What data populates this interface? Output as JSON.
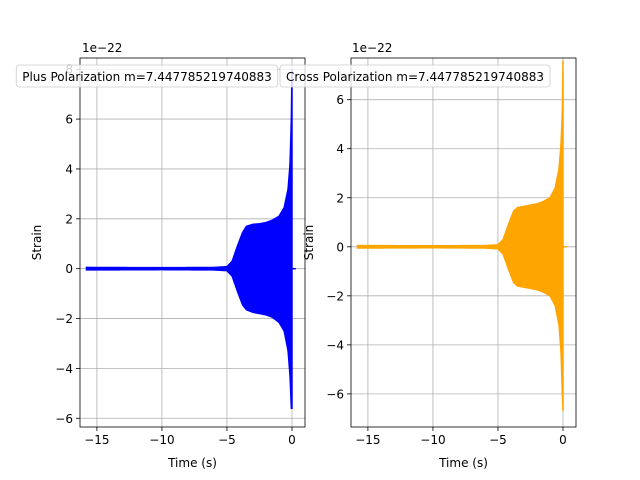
{
  "chart_data": [
    {
      "type": "line",
      "title": "Plus Polarization m=7.447785219740883",
      "xlabel": "Time (s)",
      "ylabel": "Strain",
      "offset_text": "1e−22",
      "color": "#0000ff",
      "grid": true,
      "legend": "none",
      "xlim": [
        -16.3,
        1.0
      ],
      "ylim": [
        -6.35,
        8.45
      ],
      "xticks": [
        -15,
        -10,
        -5,
        0
      ],
      "xtick_labels": [
        "−15",
        "−10",
        "−5",
        "0"
      ],
      "yticks": [
        -6,
        -4,
        -2,
        0,
        2,
        4,
        6,
        8
      ],
      "ytick_labels": [
        "−6",
        "−4",
        "−2",
        "0",
        "2",
        "4",
        "6",
        "8"
      ],
      "envelope": {
        "t": [
          -15.8,
          -10.0,
          -6.0,
          -5.0,
          -4.6,
          -4.2,
          -3.8,
          -3.5,
          -3.0,
          -2.5,
          -2.0,
          -1.5,
          -1.0,
          -0.6,
          -0.3,
          -0.15,
          -0.05,
          0.0
        ],
        "upper": [
          0.05,
          0.04,
          0.05,
          0.08,
          0.3,
          0.9,
          1.45,
          1.7,
          1.78,
          1.8,
          1.85,
          1.95,
          2.1,
          2.45,
          3.2,
          4.2,
          6.0,
          8.0
        ],
        "lower": [
          -0.05,
          -0.04,
          -0.05,
          -0.08,
          -0.3,
          -0.9,
          -1.45,
          -1.65,
          -1.75,
          -1.8,
          -1.85,
          -1.95,
          -2.15,
          -2.5,
          -3.3,
          -4.3,
          -5.6,
          -5.6
        ]
      },
      "tail": {
        "t": [
          0.0,
          0.3
        ],
        "value": 0.0
      }
    },
    {
      "type": "line",
      "title": "Cross Polarization m=7.447785219740883",
      "xlabel": "Time (s)",
      "ylabel": "Strain",
      "offset_text": "1e−22",
      "color": "#ffa500",
      "grid": true,
      "legend": "none",
      "xlim": [
        -16.3,
        1.0
      ],
      "ylim": [
        -7.35,
        7.7
      ],
      "xticks": [
        -15,
        -10,
        -5,
        0
      ],
      "xtick_labels": [
        "−15",
        "−10",
        "−5",
        "0"
      ],
      "yticks": [
        -6,
        -4,
        -2,
        0,
        2,
        4,
        6
      ],
      "ytick_labels": [
        "−6",
        "−4",
        "−2",
        "0",
        "2",
        "4",
        "6"
      ],
      "envelope": {
        "t": [
          -15.8,
          -10.0,
          -6.0,
          -5.0,
          -4.6,
          -4.2,
          -3.8,
          -3.5,
          -3.0,
          -2.5,
          -2.0,
          -1.5,
          -1.0,
          -0.6,
          -0.3,
          -0.15,
          -0.05,
          0.0
        ],
        "upper": [
          0.05,
          0.04,
          0.05,
          0.08,
          0.3,
          0.9,
          1.45,
          1.6,
          1.65,
          1.7,
          1.75,
          1.85,
          2.0,
          2.4,
          3.2,
          4.2,
          5.5,
          7.6
        ],
        "lower": [
          -0.05,
          -0.04,
          -0.05,
          -0.08,
          -0.3,
          -0.9,
          -1.45,
          -1.6,
          -1.65,
          -1.7,
          -1.75,
          -1.85,
          -2.0,
          -2.4,
          -3.2,
          -4.3,
          -6.0,
          -6.7
        ]
      },
      "tail": {
        "t": [
          0.0,
          0.3
        ],
        "value": 0.0
      }
    }
  ]
}
